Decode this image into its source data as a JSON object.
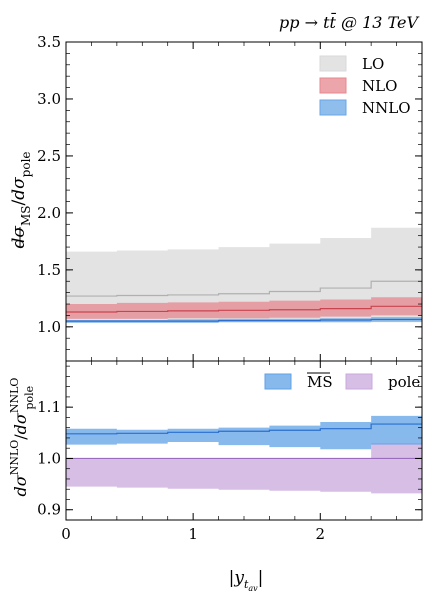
{
  "process_label": "pp → tt̄ @ 13 TeV",
  "chart_data": [
    {
      "type": "area",
      "panel": "top",
      "ylabel": "dσMS/dσpole",
      "ylim": [
        0.7,
        3.5
      ],
      "yticks": [
        1.0,
        1.5,
        2.0,
        2.5,
        3.0,
        3.5
      ],
      "ytick_labels": [
        "1.0",
        "1.5",
        "2.0",
        "2.5",
        "3.0",
        "3.5"
      ],
      "xlim": [
        0,
        2.8
      ],
      "bin_edges": [
        0,
        0.4,
        0.8,
        1.2,
        1.6,
        2.0,
        2.4,
        2.8
      ],
      "legend_position": "top-right",
      "series": [
        {
          "name": "LO",
          "color": "#d9d9d9",
          "central": [
            1.27,
            1.275,
            1.28,
            1.29,
            1.31,
            1.34,
            1.4
          ],
          "low": [
            1.04,
            1.04,
            1.04,
            1.04,
            1.04,
            1.04,
            1.04
          ],
          "high": [
            1.66,
            1.67,
            1.68,
            1.7,
            1.73,
            1.78,
            1.87
          ]
        },
        {
          "name": "NLO",
          "color": "#e6888f",
          "central": [
            1.13,
            1.135,
            1.14,
            1.145,
            1.15,
            1.16,
            1.18
          ],
          "low": [
            1.07,
            1.07,
            1.075,
            1.075,
            1.08,
            1.09,
            1.1
          ],
          "high": [
            1.2,
            1.21,
            1.215,
            1.22,
            1.23,
            1.24,
            1.26
          ]
        },
        {
          "name": "NNLO",
          "color": "#6aa7e6",
          "central": [
            1.05,
            1.05,
            1.05,
            1.055,
            1.055,
            1.06,
            1.065
          ],
          "low": [
            1.035,
            1.035,
            1.035,
            1.04,
            1.04,
            1.04,
            1.045
          ],
          "high": [
            1.06,
            1.06,
            1.065,
            1.07,
            1.07,
            1.075,
            1.085
          ]
        }
      ]
    },
    {
      "type": "area",
      "panel": "bottom",
      "ylabel": "dσNNLO/dσNNLOpole",
      "xlabel": "|yt av|",
      "ylim": [
        0.88,
        1.19
      ],
      "yticks": [
        0.9,
        1.0,
        1.1
      ],
      "ytick_labels": [
        "0.9",
        "1.0",
        "1.1"
      ],
      "xlim": [
        0,
        2.8
      ],
      "xticks": [
        0,
        1,
        2
      ],
      "xtick_labels": [
        "0",
        "1",
        "2"
      ],
      "bin_edges": [
        0,
        0.4,
        0.8,
        1.2,
        1.6,
        2.0,
        2.4,
        2.8
      ],
      "legend_position": "top",
      "series": [
        {
          "name": "pole",
          "color": "#c8a8dc",
          "central": [
            1.0,
            1.0,
            1.0,
            1.0,
            1.0,
            1.0,
            1.0
          ],
          "low": [
            0.945,
            0.943,
            0.941,
            0.939,
            0.937,
            0.935,
            0.932
          ],
          "high": [
            1.0,
            1.0,
            1.0,
            1.0,
            1.0,
            1.0,
            1.03
          ]
        },
        {
          "name": "MS",
          "color": "#5fa2e6",
          "central": [
            1.048,
            1.049,
            1.051,
            1.053,
            1.055,
            1.058,
            1.067
          ],
          "low": [
            1.027,
            1.029,
            1.032,
            1.026,
            1.022,
            1.018,
            1.027
          ],
          "high": [
            1.058,
            1.056,
            1.058,
            1.06,
            1.064,
            1.071,
            1.083
          ]
        }
      ]
    }
  ]
}
